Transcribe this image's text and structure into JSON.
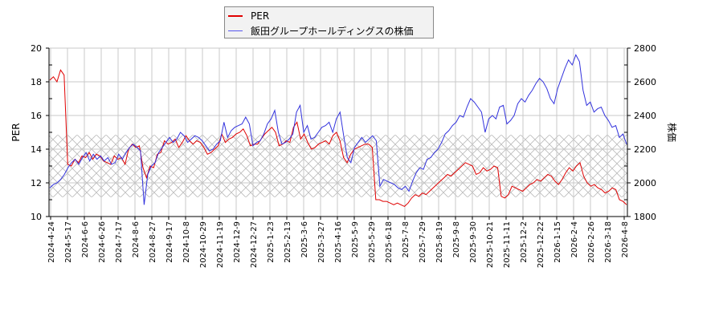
{
  "chart_data": {
    "type": "line",
    "title": "",
    "xlabel": "",
    "ylabel": "PER",
    "y2label": "株価",
    "ylim": [
      10,
      20
    ],
    "y2lim": [
      1800,
      2800
    ],
    "yticks": [
      10,
      12,
      14,
      16,
      18,
      20
    ],
    "y2ticks": [
      1800,
      2000,
      2200,
      2400,
      2600,
      2800
    ],
    "grid": true,
    "legend_position": "top-center",
    "band": {
      "from": 11.15,
      "to": 14.85,
      "pattern": "crosshatch",
      "axis": "PER"
    },
    "x_tick_labels": [
      "2024-4-24",
      "2024-5-17",
      "2024-6-6",
      "2024-6-26",
      "2024-7-17",
      "2024-8-6",
      "2024-8-27",
      "2024-9-17",
      "2024-10-8",
      "2024-10-29",
      "2024-11-19",
      "2024-12-9",
      "2024-12-27",
      "2025-1-23",
      "2025-2-13",
      "2025-3-6",
      "2025-3-27",
      "2025-4-16",
      "2025-5-9",
      "2025-5-29",
      "2025-6-18",
      "2025-7-8",
      "2025-7-29",
      "2025-8-19",
      "2025-9-8",
      "2025-9-30",
      "2025-10-21",
      "2025-11-11",
      "2025-12-2",
      "2025-12-22",
      "2026-1-15",
      "2026-2-4",
      "2026-2-26",
      "2026-3-18",
      "2026-4-8"
    ],
    "series": [
      {
        "name": "PER",
        "axis": "left",
        "color": "#e00000",
        "values": [
          18.1,
          18.3,
          18.0,
          18.7,
          18.4,
          13.1,
          13.0,
          13.4,
          13.2,
          13.6,
          13.5,
          13.8,
          13.4,
          13.7,
          13.6,
          13.3,
          13.2,
          13.1,
          13.6,
          13.4,
          13.5,
          13.1,
          14.0,
          14.3,
          14.1,
          14.2,
          12.9,
          12.3,
          13.0,
          12.9,
          13.7,
          13.8,
          14.5,
          14.3,
          14.4,
          14.6,
          14.1,
          14.4,
          14.8,
          14.5,
          14.3,
          14.5,
          14.4,
          14.1,
          13.7,
          13.8,
          14.0,
          14.2,
          14.9,
          14.4,
          14.6,
          14.7,
          14.9,
          15.0,
          15.2,
          14.8,
          14.2,
          14.3,
          14.3,
          14.6,
          14.9,
          15.1,
          15.3,
          15.0,
          14.2,
          14.3,
          14.5,
          14.4,
          15.3,
          15.6,
          14.6,
          14.9,
          14.4,
          14.0,
          14.1,
          14.3,
          14.4,
          14.5,
          14.3,
          14.8,
          15.0,
          14.5,
          13.5,
          13.2,
          13.7,
          14.0,
          14.1,
          14.2,
          14.3,
          14.3,
          14.1,
          11.0,
          11.0,
          10.9,
          10.9,
          10.8,
          10.7,
          10.8,
          10.7,
          10.6,
          10.8,
          11.1,
          11.3,
          11.2,
          11.4,
          11.3,
          11.5,
          11.7,
          11.9,
          12.1,
          12.3,
          12.5,
          12.4,
          12.6,
          12.8,
          13.0,
          13.2,
          13.1,
          13.0,
          12.5,
          12.6,
          12.9,
          12.7,
          12.8,
          13.0,
          12.9,
          11.2,
          11.1,
          11.3,
          11.8,
          11.7,
          11.6,
          11.5,
          11.7,
          11.9,
          12.0,
          12.2,
          12.1,
          12.3,
          12.5,
          12.4,
          12.1,
          11.9,
          12.2,
          12.6,
          12.9,
          12.7,
          13.0,
          13.2,
          12.4,
          12.0,
          11.8,
          11.9,
          11.7,
          11.6,
          11.4,
          11.5,
          11.7,
          11.6,
          11.0,
          10.9,
          10.7
        ]
      },
      {
        "name": "飯田グループホールディングスの株価",
        "axis": "right",
        "color": "#3333dd",
        "values": [
          1970,
          1990,
          2000,
          2020,
          2050,
          2090,
          2120,
          2140,
          2110,
          2150,
          2180,
          2130,
          2170,
          2140,
          2160,
          2130,
          2150,
          2110,
          2120,
          2170,
          2140,
          2180,
          2210,
          2230,
          2210,
          2190,
          1870,
          2050,
          2100,
          2120,
          2180,
          2210,
          2240,
          2270,
          2240,
          2260,
          2300,
          2280,
          2240,
          2260,
          2280,
          2270,
          2250,
          2220,
          2190,
          2200,
          2230,
          2250,
          2360,
          2270,
          2310,
          2330,
          2340,
          2350,
          2390,
          2350,
          2220,
          2240,
          2250,
          2290,
          2350,
          2380,
          2430,
          2300,
          2230,
          2240,
          2260,
          2290,
          2420,
          2460,
          2300,
          2340,
          2260,
          2270,
          2300,
          2330,
          2340,
          2360,
          2300,
          2380,
          2420,
          2280,
          2150,
          2120,
          2210,
          2240,
          2270,
          2240,
          2260,
          2280,
          2250,
          1980,
          2020,
          2010,
          2000,
          1990,
          1970,
          1960,
          1980,
          1950,
          2010,
          2060,
          2090,
          2080,
          2140,
          2150,
          2180,
          2200,
          2240,
          2290,
          2310,
          2340,
          2360,
          2400,
          2390,
          2450,
          2500,
          2480,
          2450,
          2420,
          2300,
          2380,
          2400,
          2380,
          2450,
          2460,
          2350,
          2370,
          2400,
          2470,
          2500,
          2480,
          2520,
          2550,
          2590,
          2620,
          2600,
          2560,
          2500,
          2470,
          2560,
          2620,
          2680,
          2730,
          2700,
          2760,
          2720,
          2550,
          2460,
          2480,
          2420,
          2440,
          2450,
          2400,
          2370,
          2330,
          2340,
          2270,
          2290,
          2230
        ]
      }
    ]
  },
  "legend": {
    "items": [
      {
        "label": "PER",
        "color": "#e00000"
      },
      {
        "label": "飯田グループホールディングスの株価",
        "color": "#3333dd"
      }
    ]
  }
}
